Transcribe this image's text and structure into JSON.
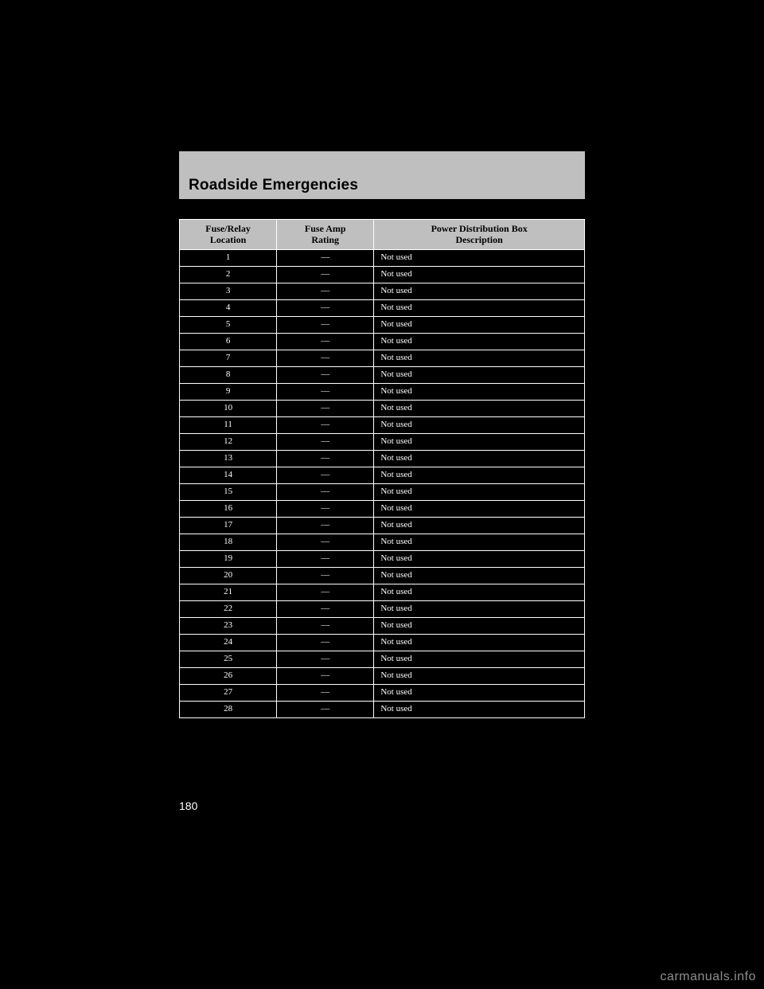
{
  "chapter_title": "Roadside Emergencies",
  "page_number": "180",
  "watermark": "carmanuals.info",
  "table": {
    "type": "table",
    "header_bg": "#bfbfbf",
    "header_fg": "#000000",
    "row_fg": "#ffffff",
    "border_color": "#ffffff",
    "columns": [
      {
        "key": "loc",
        "label_l1": "Fuse/Relay",
        "label_l2": "Location",
        "width_pct": 24
      },
      {
        "key": "amp",
        "label_l1": "Fuse Amp",
        "label_l2": "Rating",
        "width_pct": 24
      },
      {
        "key": "desc",
        "label_l1": "Power Distribution Box",
        "label_l2": "Description",
        "width_pct": 52
      }
    ],
    "rows": [
      {
        "loc": "1",
        "amp": "—",
        "desc": "Not used"
      },
      {
        "loc": "2",
        "amp": "—",
        "desc": "Not used"
      },
      {
        "loc": "3",
        "amp": "—",
        "desc": "Not used"
      },
      {
        "loc": "4",
        "amp": "—",
        "desc": "Not used"
      },
      {
        "loc": "5",
        "amp": "—",
        "desc": "Not used"
      },
      {
        "loc": "6",
        "amp": "—",
        "desc": "Not used"
      },
      {
        "loc": "7",
        "amp": "—",
        "desc": "Not used"
      },
      {
        "loc": "8",
        "amp": "—",
        "desc": "Not used"
      },
      {
        "loc": "9",
        "amp": "—",
        "desc": "Not used"
      },
      {
        "loc": "10",
        "amp": "—",
        "desc": "Not used"
      },
      {
        "loc": "11",
        "amp": "—",
        "desc": "Not used"
      },
      {
        "loc": "12",
        "amp": "—",
        "desc": "Not used"
      },
      {
        "loc": "13",
        "amp": "—",
        "desc": "Not used"
      },
      {
        "loc": "14",
        "amp": "—",
        "desc": "Not used"
      },
      {
        "loc": "15",
        "amp": "—",
        "desc": "Not used"
      },
      {
        "loc": "16",
        "amp": "—",
        "desc": "Not used"
      },
      {
        "loc": "17",
        "amp": "—",
        "desc": "Not used"
      },
      {
        "loc": "18",
        "amp": "—",
        "desc": "Not used"
      },
      {
        "loc": "19",
        "amp": "—",
        "desc": "Not used"
      },
      {
        "loc": "20",
        "amp": "—",
        "desc": "Not used"
      },
      {
        "loc": "21",
        "amp": "—",
        "desc": "Not used"
      },
      {
        "loc": "22",
        "amp": "—",
        "desc": "Not used"
      },
      {
        "loc": "23",
        "amp": "—",
        "desc": "Not used"
      },
      {
        "loc": "24",
        "amp": "—",
        "desc": "Not used"
      },
      {
        "loc": "25",
        "amp": "—",
        "desc": "Not used"
      },
      {
        "loc": "26",
        "amp": "—",
        "desc": "Not used"
      },
      {
        "loc": "27",
        "amp": "—",
        "desc": "Not used"
      },
      {
        "loc": "28",
        "amp": "—",
        "desc": "Not used"
      }
    ]
  }
}
